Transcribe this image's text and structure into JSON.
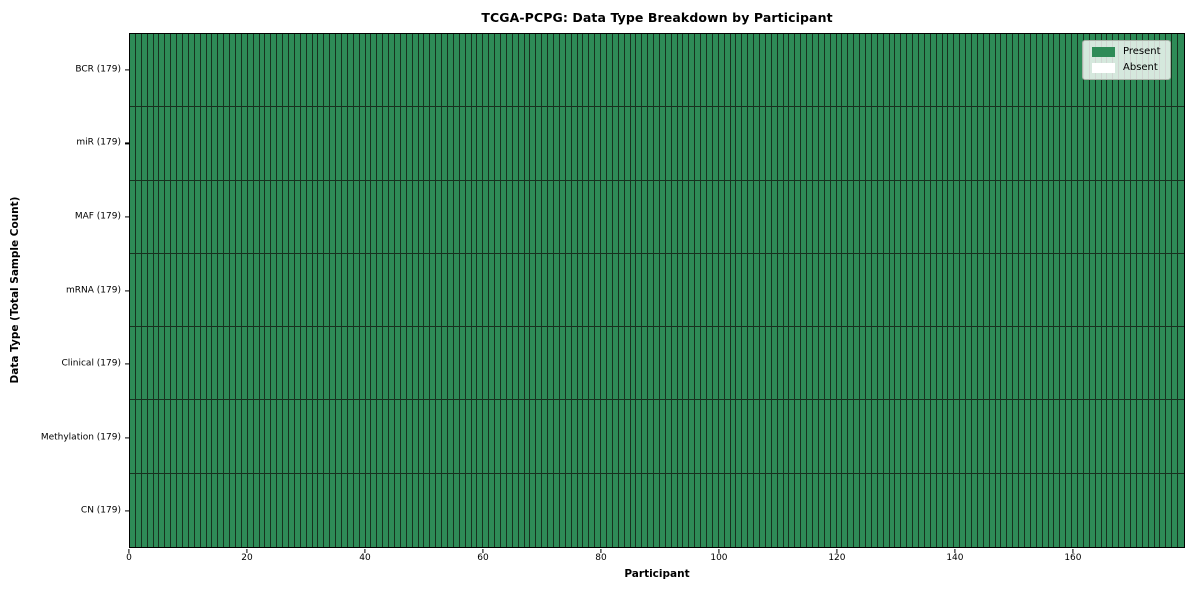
{
  "figure": {
    "background": "#ffffff"
  },
  "chart_data": {
    "type": "heatmap",
    "title": "TCGA-PCPG: Data Type Breakdown by Participant",
    "xlabel": "Participant",
    "ylabel": "Data Type (Total Sample Count)",
    "n_participants": 179,
    "x_range": [
      0,
      179
    ],
    "x_ticks": [
      0,
      20,
      40,
      60,
      80,
      100,
      120,
      140,
      160
    ],
    "grid": "cell-borders",
    "rows": [
      {
        "label": "BCR (179)",
        "data_type": "BCR",
        "total_samples": 179,
        "present_count": 179,
        "absent_count": 0
      },
      {
        "label": "miR (179)",
        "data_type": "miR",
        "total_samples": 179,
        "present_count": 179,
        "absent_count": 0
      },
      {
        "label": "MAF (179)",
        "data_type": "MAF",
        "total_samples": 179,
        "present_count": 179,
        "absent_count": 0
      },
      {
        "label": "mRNA (179)",
        "data_type": "mRNA",
        "total_samples": 179,
        "present_count": 179,
        "absent_count": 0
      },
      {
        "label": "Clinical (179)",
        "data_type": "Clinical",
        "total_samples": 179,
        "present_count": 179,
        "absent_count": 0
      },
      {
        "label": "Methylation (179)",
        "data_type": "Methylation",
        "total_samples": 179,
        "present_count": 179,
        "absent_count": 0
      },
      {
        "label": "CN (179)",
        "data_type": "CN",
        "total_samples": 179,
        "present_count": 179,
        "absent_count": 0
      }
    ],
    "legend": {
      "position": "upper-right",
      "entries": [
        {
          "label": "Present",
          "color": "#2e8b57"
        },
        {
          "label": "Absent",
          "color": "#ffffff"
        }
      ]
    },
    "colors": {
      "present": "#2e8b57",
      "absent": "#ffffff",
      "cell_edge": "#17321f",
      "plot_border": "#000000"
    }
  }
}
